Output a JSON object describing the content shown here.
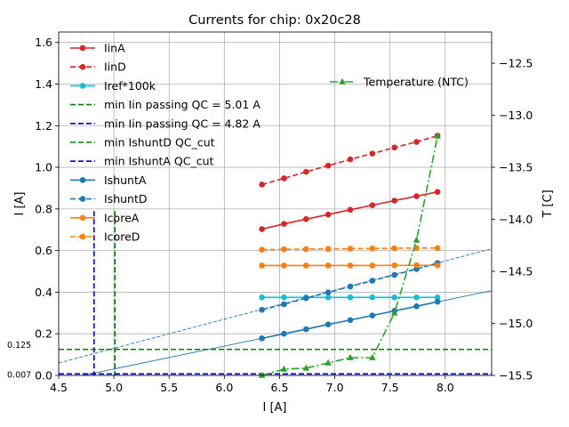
{
  "chart_data": {
    "type": "line",
    "title": "Currents for chip: 0x20c28",
    "xlabel": "I [A]",
    "ylabel": "I [A]",
    "y2label": "T [C]",
    "xlim": [
      4.5,
      8.42
    ],
    "ylim": [
      0.0,
      1.65
    ],
    "y2lim": [
      -15.5,
      -12.2
    ],
    "xticks": [
      "4.5",
      "5.0",
      "5.5",
      "6.0",
      "6.5",
      "7.0",
      "7.5",
      "8.0"
    ],
    "yticks": [
      "0.0",
      "0.2",
      "0.4",
      "0.6",
      "0.8",
      "1.0",
      "1.2",
      "1.4",
      "1.6"
    ],
    "y2ticks": [
      "−15.5",
      "−15.0",
      "−14.5",
      "−14.0",
      "−13.5",
      "−13.0",
      "−12.5"
    ],
    "grid": true,
    "legend_position": "upper-left",
    "x": [
      6.34,
      6.54,
      6.74,
      6.94,
      7.14,
      7.34,
      7.54,
      7.74,
      7.93
    ],
    "series": [
      {
        "name": "IinA",
        "axis": "left",
        "color": "#d62728",
        "dash": "solid",
        "marker": "circle",
        "values": [
          0.703,
          0.728,
          0.751,
          0.773,
          0.796,
          0.818,
          0.84,
          0.861,
          0.882
        ]
      },
      {
        "name": "IinD",
        "axis": "left",
        "color": "#d62728",
        "dash": "dashed",
        "marker": "circle",
        "values": [
          0.917,
          0.947,
          0.978,
          1.008,
          1.038,
          1.066,
          1.095,
          1.122,
          1.152
        ]
      },
      {
        "name": "Iref*100k",
        "axis": "left",
        "color": "#17becf",
        "dash": "solid",
        "marker": "circle",
        "values": [
          0.375,
          0.375,
          0.375,
          0.375,
          0.375,
          0.375,
          0.375,
          0.375,
          0.375
        ]
      },
      {
        "name": "IshuntA",
        "axis": "left",
        "color": "#1f77b4",
        "dash": "solid",
        "marker": "circle",
        "values": [
          0.178,
          0.2,
          0.222,
          0.245,
          0.266,
          0.288,
          0.31,
          0.332,
          0.354
        ]
      },
      {
        "name": "IshuntD",
        "axis": "left",
        "color": "#1f77b4",
        "dash": "dashed",
        "marker": "circle",
        "values": [
          0.315,
          0.342,
          0.371,
          0.399,
          0.427,
          0.455,
          0.483,
          0.511,
          0.54
        ]
      },
      {
        "name": "IcoreA",
        "axis": "left",
        "color": "#ff7f0e",
        "dash": "solid",
        "marker": "circle",
        "values": [
          0.528,
          0.528,
          0.528,
          0.528,
          0.528,
          0.528,
          0.529,
          0.529,
          0.529
        ]
      },
      {
        "name": "IcoreD",
        "axis": "left",
        "color": "#ff7f0e",
        "dash": "dashed",
        "marker": "circle",
        "values": [
          0.604,
          0.606,
          0.607,
          0.608,
          0.609,
          0.61,
          0.611,
          0.612,
          0.612
        ]
      },
      {
        "name": "Temperature (NTC)",
        "axis": "right",
        "color": "#2ca02c",
        "dash": "dashdot",
        "marker": "triangle",
        "values": [
          -15.5,
          -15.44,
          -15.43,
          -15.38,
          -15.33,
          -15.33,
          -14.9,
          -14.2,
          -13.2
        ]
      }
    ],
    "threshold_lines": [
      {
        "name": "min Iin passing QC = 5.01 A",
        "orientation": "vertical",
        "x": 5.01,
        "y_range": [
          0.0,
          0.79
        ],
        "color": "#008000"
      },
      {
        "name": "min Iin passing QC = 4.82 A",
        "orientation": "vertical",
        "x": 4.82,
        "y_range": [
          0.0,
          0.79
        ],
        "color": "#0000cd"
      },
      {
        "name": "min IshuntD QC_cut",
        "orientation": "horizontal",
        "y": 0.125,
        "color": "#008000"
      },
      {
        "name": "min IshuntA QC_cut",
        "orientation": "horizontal",
        "y": 0.007,
        "color": "#0000cd"
      }
    ],
    "threshold_labels": [
      "0.125",
      "0.007"
    ],
    "fit_lines": [
      {
        "color": "#1f77b4",
        "dash": "solid",
        "slope": 0.11,
        "intercept": -0.519
      },
      {
        "color": "#1f77b4",
        "dash": "dashed",
        "slope": 0.14,
        "intercept": -0.57
      }
    ],
    "legend": [
      {
        "label": "IinA",
        "series": "IinA"
      },
      {
        "label": "IinD",
        "series": "IinD"
      },
      {
        "label": "Iref*100k",
        "series": "Iref*100k"
      },
      {
        "label": "min Iin passing QC = 5.01 A",
        "series": "min Iin passing QC = 5.01 A"
      },
      {
        "label": "min Iin passing QC = 4.82 A",
        "series": "min Iin passing QC = 4.82 A"
      },
      {
        "label": "min IshuntD QC_cut",
        "series": "min IshuntD QC_cut"
      },
      {
        "label": "min IshuntA QC_cut",
        "series": "min IshuntA QC_cut"
      },
      {
        "label": "IshuntA",
        "series": "IshuntA"
      },
      {
        "label": "IshuntD",
        "series": "IshuntD"
      },
      {
        "label": "IcoreA",
        "series": "IcoreA"
      },
      {
        "label": "IcoreD",
        "series": "IcoreD"
      }
    ],
    "legend2": [
      {
        "label": "Temperature (NTC)",
        "series": "Temperature (NTC)"
      }
    ]
  }
}
